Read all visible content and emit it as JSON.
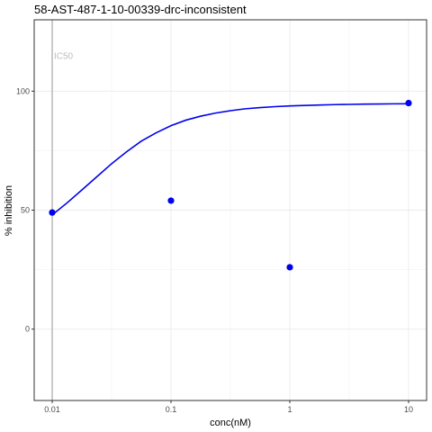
{
  "chart_data": {
    "type": "scatter",
    "title": "58-AST-487-1-10-00339-drc-inconsistent",
    "xlabel": "conc(nM)",
    "ylabel": "% inhibition",
    "x_scale": "log10",
    "xlim": [
      0.01,
      10
    ],
    "ylim": [
      -30,
      130
    ],
    "x_ticks": [
      0.01,
      0.1,
      1,
      10
    ],
    "x_tick_labels": [
      "0.01",
      "0.1",
      "1",
      "10"
    ],
    "y_ticks": [
      0,
      50,
      100
    ],
    "y_tick_labels": [
      "0",
      "50",
      "100"
    ],
    "grid": true,
    "points": {
      "x": [
        0.01,
        0.1,
        1,
        10
      ],
      "y": [
        49,
        54,
        26,
        95
      ]
    },
    "fit_curve": {
      "color": "#0000ee",
      "x": [
        0.01,
        0.0133,
        0.0178,
        0.0237,
        0.0316,
        0.0422,
        0.0562,
        0.075,
        0.1,
        0.133,
        0.178,
        0.237,
        0.316,
        0.422,
        0.562,
        0.75,
        1,
        1.33,
        1.78,
        2.37,
        3.16,
        4.22,
        5.62,
        7.5,
        10
      ],
      "y": [
        48,
        53,
        58.5,
        64,
        69.5,
        74.5,
        79,
        82.5,
        85.5,
        87.8,
        89.5,
        90.8,
        91.8,
        92.6,
        93.1,
        93.5,
        93.8,
        94.0,
        94.2,
        94.35,
        94.45,
        94.55,
        94.62,
        94.68,
        94.72
      ]
    },
    "vline": {
      "x": 0.01,
      "label": "IC50",
      "color": "#bdbdbd"
    },
    "point_color": "#0000ee"
  }
}
